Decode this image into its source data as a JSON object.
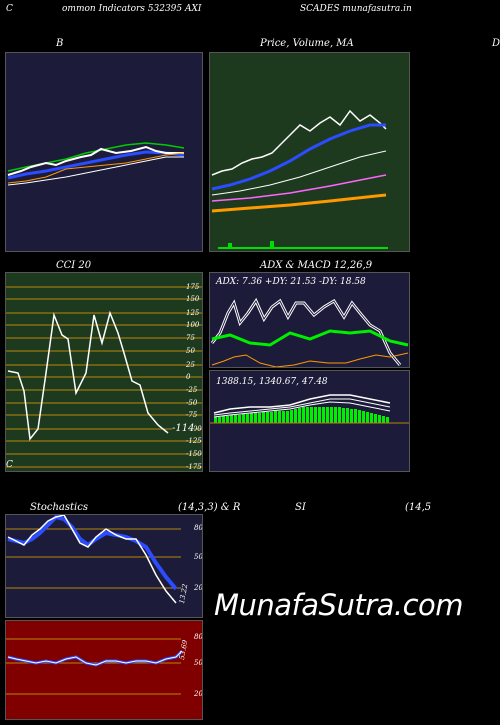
{
  "header": {
    "left": "C",
    "center": "ommon  Indicators 532395 AXI",
    "right": "SCADES munafasutra.in"
  },
  "panels": {
    "bb": {
      "title": "B"
    },
    "price": {
      "title_a": "Price,  Volume,  MA",
      "title_b": "Price,  Volume,  MA",
      "edge": "D"
    },
    "cci": {
      "title": "CCI 20",
      "last_value": "-114",
      "ticks": [
        "175",
        "150",
        "125",
        "100",
        "75",
        "50",
        "25",
        "0",
        "-25",
        "-50",
        "-75",
        "-100",
        "-125",
        "-150",
        "-175"
      ]
    },
    "adx": {
      "title": "ADX  & MACD 12,26,9",
      "values": "ADX: 7.36   +DY: 21.53 -DY: 18.58"
    },
    "macd": {
      "values": "1388.15,  1340.67,  47.48"
    },
    "stoch": {
      "title_left": "Stochastics",
      "title_mid": "(14,3,3) & R",
      "title_r1": "SI",
      "title_r2": "(14,5",
      "ticks": [
        "80",
        "50",
        "20"
      ],
      "last_value": "13.22"
    },
    "rsi": {
      "ticks": [
        "80",
        "50",
        "20"
      ],
      "last_value": "53.69"
    }
  },
  "footer": {
    "left": "C"
  },
  "watermark": "MunafaSutra.com",
  "colors": {
    "dark_navy": "#1c1c3a",
    "dark_green": "#1e3a1e",
    "dark_red": "#800000",
    "grid": "#b8860b"
  }
}
